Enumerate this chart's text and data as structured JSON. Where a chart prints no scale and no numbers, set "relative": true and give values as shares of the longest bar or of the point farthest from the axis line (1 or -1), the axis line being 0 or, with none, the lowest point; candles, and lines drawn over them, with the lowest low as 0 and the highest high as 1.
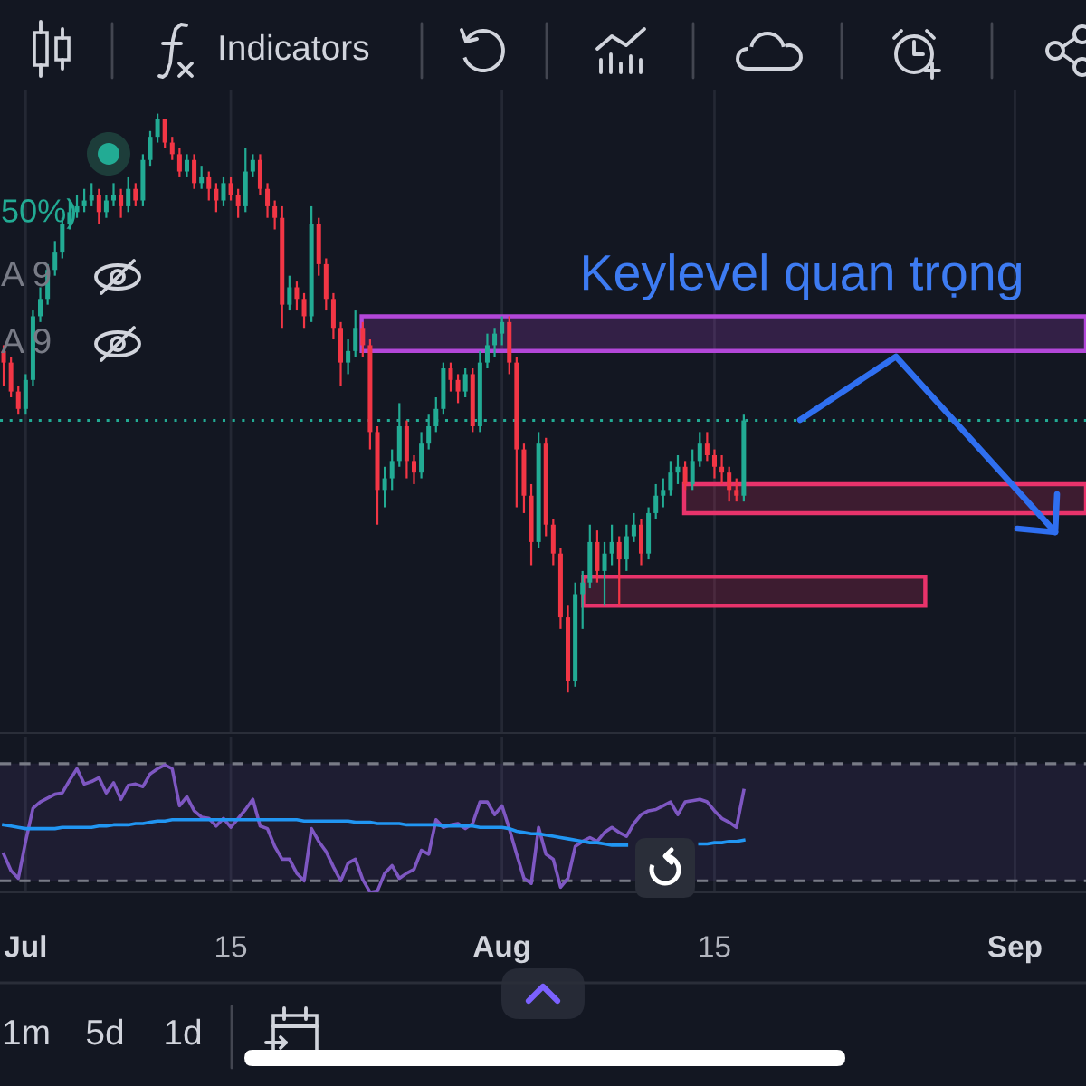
{
  "chart_data": [
    {
      "type": "candlestick",
      "relative": true,
      "categories": [
        null,
        null,
        null,
        null,
        null,
        null,
        null,
        null,
        null,
        null,
        null,
        null,
        null,
        null,
        null,
        null,
        null,
        null,
        null,
        null,
        null,
        null,
        null,
        null,
        null,
        null,
        null,
        null,
        null,
        null,
        null,
        null,
        null,
        null,
        null,
        null,
        null,
        null,
        null,
        null,
        null,
        null,
        null,
        null,
        null,
        null,
        null,
        null,
        null,
        null,
        null,
        null,
        null,
        null,
        null,
        null,
        null,
        null,
        null,
        null,
        null,
        null,
        null,
        null,
        null,
        null,
        null,
        null,
        null,
        null,
        null,
        null,
        null,
        null,
        null,
        null,
        null,
        null,
        null,
        null,
        null,
        null,
        null,
        null,
        null,
        null,
        null,
        null,
        null,
        null,
        null,
        null,
        null,
        null,
        null,
        null,
        null,
        null,
        null,
        null,
        null,
        null,
        null,
        null,
        null,
        null,
        null,
        null,
        null,
        null,
        null,
        null,
        null,
        null,
        null,
        null,
        null,
        null,
        null,
        null,
        null,
        null,
        null,
        null,
        null,
        null,
        null,
        null,
        null,
        null,
        null,
        null,
        null,
        null,
        null,
        null,
        null,
        null,
        null,
        null,
        null,
        null,
        null,
        null,
        null,
        null,
        null,
        null
      ],
      "ohlc": [
        [
          0.59,
          0.6,
          0.53,
          0.57
        ],
        [
          0.57,
          0.58,
          0.51,
          0.52
        ],
        [
          0.52,
          0.53,
          0.48,
          0.49
        ],
        [
          0.49,
          0.55,
          0.48,
          0.54
        ],
        [
          0.54,
          0.66,
          0.53,
          0.65
        ],
        [
          0.65,
          0.7,
          0.64,
          0.68
        ],
        [
          0.68,
          0.74,
          0.67,
          0.73
        ],
        [
          0.73,
          0.78,
          0.72,
          0.76
        ],
        [
          0.76,
          0.82,
          0.75,
          0.81
        ],
        [
          0.81,
          0.85,
          0.8,
          0.83
        ],
        [
          0.83,
          0.86,
          0.82,
          0.84
        ],
        [
          0.84,
          0.87,
          0.83,
          0.85
        ],
        [
          0.85,
          0.88,
          0.84,
          0.86
        ],
        [
          0.86,
          0.87,
          0.81,
          0.83
        ],
        [
          0.83,
          0.86,
          0.82,
          0.85
        ],
        [
          0.85,
          0.88,
          0.84,
          0.86
        ],
        [
          0.86,
          0.87,
          0.82,
          0.84
        ],
        [
          0.84,
          0.89,
          0.83,
          0.87
        ],
        [
          0.87,
          0.88,
          0.84,
          0.85
        ],
        [
          0.85,
          0.93,
          0.84,
          0.92
        ],
        [
          0.92,
          0.97,
          0.91,
          0.96
        ],
        [
          0.96,
          1.0,
          0.95,
          0.99
        ],
        [
          0.99,
          0.99,
          0.94,
          0.95
        ],
        [
          0.95,
          0.96,
          0.92,
          0.93
        ],
        [
          0.93,
          0.94,
          0.89,
          0.9
        ],
        [
          0.9,
          0.93,
          0.89,
          0.92
        ],
        [
          0.92,
          0.93,
          0.87,
          0.88
        ],
        [
          0.88,
          0.91,
          0.87,
          0.89
        ],
        [
          0.89,
          0.9,
          0.85,
          0.87
        ],
        [
          0.87,
          0.88,
          0.83,
          0.85
        ],
        [
          0.85,
          0.89,
          0.84,
          0.88
        ],
        [
          0.88,
          0.89,
          0.85,
          0.86
        ],
        [
          0.86,
          0.87,
          0.82,
          0.84
        ],
        [
          0.84,
          0.94,
          0.83,
          0.9
        ],
        [
          0.9,
          0.93,
          0.89,
          0.92
        ],
        [
          0.92,
          0.93,
          0.86,
          0.87
        ],
        [
          0.87,
          0.88,
          0.82,
          0.84
        ],
        [
          0.84,
          0.85,
          0.8,
          0.82
        ],
        [
          0.82,
          0.84,
          0.63,
          0.67
        ],
        [
          0.67,
          0.72,
          0.66,
          0.7
        ],
        [
          0.7,
          0.71,
          0.66,
          0.68
        ],
        [
          0.68,
          0.69,
          0.63,
          0.65
        ],
        [
          0.65,
          0.84,
          0.64,
          0.81
        ],
        [
          0.81,
          0.82,
          0.72,
          0.74
        ],
        [
          0.74,
          0.75,
          0.66,
          0.68
        ],
        [
          0.68,
          0.69,
          0.61,
          0.63
        ],
        [
          0.63,
          0.64,
          0.53,
          0.57
        ],
        [
          0.57,
          0.61,
          0.55,
          0.59
        ],
        [
          0.59,
          0.66,
          0.58,
          0.63
        ],
        [
          0.63,
          0.64,
          0.58,
          0.6
        ],
        [
          0.6,
          0.61,
          0.42,
          0.45
        ],
        [
          0.45,
          0.46,
          0.29,
          0.35
        ],
        [
          0.35,
          0.39,
          0.32,
          0.37
        ],
        [
          0.37,
          0.42,
          0.35,
          0.4
        ],
        [
          0.4,
          0.5,
          0.39,
          0.46
        ],
        [
          0.46,
          0.47,
          0.37,
          0.4
        ],
        [
          0.4,
          0.41,
          0.36,
          0.38
        ],
        [
          0.38,
          0.45,
          0.37,
          0.43
        ],
        [
          0.43,
          0.48,
          0.42,
          0.46
        ],
        [
          0.46,
          0.51,
          0.45,
          0.49
        ],
        [
          0.49,
          0.57,
          0.48,
          0.56
        ],
        [
          0.56,
          0.57,
          0.52,
          0.54
        ],
        [
          0.54,
          0.55,
          0.5,
          0.52
        ],
        [
          0.52,
          0.56,
          0.51,
          0.55
        ],
        [
          0.55,
          0.56,
          0.45,
          0.46
        ],
        [
          0.46,
          0.59,
          0.45,
          0.57
        ],
        [
          0.57,
          0.62,
          0.56,
          0.6
        ],
        [
          0.6,
          0.63,
          0.58,
          0.62
        ],
        [
          0.62,
          0.65,
          0.6,
          0.64
        ],
        [
          0.64,
          0.65,
          0.55,
          0.57
        ],
        [
          0.57,
          0.58,
          0.32,
          0.42
        ],
        [
          0.42,
          0.43,
          0.31,
          0.34
        ],
        [
          0.34,
          0.36,
          0.22,
          0.26
        ],
        [
          0.26,
          0.45,
          0.25,
          0.43
        ],
        [
          0.43,
          0.44,
          0.27,
          0.29
        ],
        [
          0.29,
          0.3,
          0.22,
          0.24
        ],
        [
          0.24,
          0.25,
          0.11,
          0.13
        ],
        [
          0.13,
          0.15,
          0.0,
          0.02
        ],
        [
          0.02,
          0.19,
          0.01,
          0.17
        ],
        [
          0.17,
          0.21,
          0.11,
          0.19
        ],
        [
          0.19,
          0.29,
          0.18,
          0.26
        ],
        [
          0.26,
          0.28,
          0.19,
          0.21
        ],
        [
          0.21,
          0.26,
          0.15,
          0.24
        ],
        [
          0.24,
          0.29,
          0.22,
          0.26
        ],
        [
          0.26,
          0.27,
          0.15,
          0.23
        ],
        [
          0.23,
          0.29,
          0.21,
          0.27
        ],
        [
          0.27,
          0.31,
          0.26,
          0.29
        ],
        [
          0.29,
          0.3,
          0.22,
          0.24
        ],
        [
          0.24,
          0.32,
          0.23,
          0.31
        ],
        [
          0.31,
          0.36,
          0.3,
          0.34
        ],
        [
          0.34,
          0.37,
          0.32,
          0.35
        ],
        [
          0.35,
          0.4,
          0.34,
          0.38
        ],
        [
          0.38,
          0.41,
          0.36,
          0.39
        ],
        [
          0.39,
          0.4,
          0.35,
          0.36
        ],
        [
          0.36,
          0.42,
          0.35,
          0.4
        ],
        [
          0.4,
          0.45,
          0.39,
          0.43
        ],
        [
          0.43,
          0.45,
          0.4,
          0.41
        ],
        [
          0.41,
          0.42,
          0.37,
          0.39
        ],
        [
          0.39,
          0.41,
          0.36,
          0.38
        ],
        [
          0.38,
          0.39,
          0.33,
          0.35
        ],
        [
          0.35,
          0.37,
          0.33,
          0.34
        ],
        [
          0.34,
          0.48,
          0.33,
          0.47
        ],
        null,
        null,
        null,
        null,
        null,
        null,
        null,
        null,
        null,
        null,
        null,
        null,
        null,
        null,
        null,
        null,
        null,
        null,
        null,
        null,
        null,
        null,
        null,
        null,
        null,
        null,
        null,
        null,
        null,
        null,
        null,
        null,
        null,
        null,
        null,
        null,
        null,
        null,
        null,
        null,
        null,
        null,
        null,
        null,
        null,
        null
      ],
      "colors": [
        "#f23645",
        "#f23645",
        "#f23645",
        "#22ab94",
        "#22ab94",
        "#22ab94",
        "#22ab94",
        "#22ab94",
        "#22ab94",
        "#22ab94",
        "#22ab94",
        "#22ab94",
        "#22ab94",
        "#f23645",
        "#22ab94",
        "#22ab94",
        "#f23645",
        "#22ab94",
        "#f23645",
        "#22ab94",
        "#22ab94",
        "#22ab94",
        "#f23645",
        "#f23645",
        "#f23645",
        "#22ab94",
        "#f23645",
        "#22ab94",
        "#f23645",
        "#f23645",
        "#22ab94",
        "#f23645",
        "#f23645",
        "#22ab94",
        "#22ab94",
        "#f23645",
        "#f23645",
        "#f23645",
        "#f23645",
        "#22ab94",
        "#f23645",
        "#f23645",
        "#22ab94",
        "#f23645",
        "#f23645",
        "#f23645",
        "#f23645",
        "#22ab94",
        "#22ab94",
        "#f23645",
        "#f23645",
        "#f23645",
        "#22ab94",
        "#22ab94",
        "#22ab94",
        "#f23645",
        "#f23645",
        "#22ab94",
        "#22ab94",
        "#22ab94",
        "#22ab94",
        "#f23645",
        "#f23645",
        "#22ab94",
        "#f23645",
        "#22ab94",
        "#22ab94",
        "#22ab94",
        "#22ab94",
        "#f23645",
        "#f23645",
        "#f23645",
        "#f23645",
        "#22ab94",
        "#f23645",
        "#f23645",
        "#f23645",
        "#f23645",
        "#22ab94",
        "#22ab94",
        "#22ab94",
        "#f23645",
        "#22ab94",
        "#22ab94",
        "#f23645",
        "#22ab94",
        "#22ab94",
        "#f23645",
        "#22ab94",
        "#22ab94",
        "#22ab94",
        "#22ab94",
        "#22ab94",
        "#f23645",
        "#22ab94",
        "#22ab94",
        "#f23645",
        "#f23645",
        "#f23645",
        "#f23645",
        "#f23645",
        "#22ab94",
        null,
        null,
        null,
        null,
        null,
        null,
        null,
        null,
        null,
        null,
        null,
        null,
        null,
        null,
        null,
        null,
        null,
        null,
        null,
        null,
        null,
        null,
        null,
        null,
        null,
        null,
        null,
        null,
        null,
        null,
        null,
        null,
        null,
        null,
        null,
        null,
        null,
        null,
        null,
        null,
        null,
        null,
        null,
        null,
        null,
        null
      ],
      "tick_labels": false,
      "grid": "x",
      "ref_lines": [
        {
          "axis": "y",
          "value": 0.47,
          "color": "#22ab94",
          "line_style": "dotted"
        }
      ],
      "bands": [
        {
          "axis": "y",
          "from": 0.59,
          "to": 0.65,
          "color": "#b347d9"
        },
        {
          "axis": "y",
          "from": 0.31,
          "to": 0.36,
          "color": "#e8336b"
        },
        {
          "axis": "y",
          "from": 0.15,
          "to": 0.2,
          "color": "#e8336b"
        }
      ],
      "annotations": [
        "Keylevel quan trọng",
        "50%)",
        "A 9",
        "A 9"
      ]
    },
    {
      "type": "line",
      "relative": true,
      "categories": [
        null,
        null,
        null,
        "Jul",
        null,
        null,
        null,
        null,
        null,
        null,
        null,
        null,
        null,
        null,
        null,
        null,
        null,
        null,
        null,
        null,
        null,
        null,
        null,
        null,
        null,
        null,
        null,
        null,
        null,
        null,
        null,
        "15",
        null,
        null,
        null,
        null,
        null,
        null,
        null,
        null,
        null,
        null,
        null,
        null,
        null,
        null,
        null,
        null,
        null,
        null,
        null,
        null,
        null,
        null,
        null,
        null,
        null,
        null,
        null,
        null,
        null,
        null,
        null,
        null,
        null,
        null,
        null,
        null,
        "Aug",
        null,
        null,
        null,
        null,
        null,
        null,
        null,
        null,
        null,
        null,
        null,
        null,
        null,
        null,
        null,
        null,
        null,
        null,
        null,
        null,
        null,
        null,
        null,
        null,
        null,
        null,
        null,
        null,
        "15",
        null,
        null,
        null,
        null,
        null,
        null,
        null,
        null,
        null,
        null,
        null,
        null,
        null,
        null,
        null,
        null,
        null,
        null,
        null,
        null,
        null,
        null,
        null,
        null,
        null,
        null,
        null,
        null,
        null,
        null,
        null,
        null,
        null,
        null,
        null,
        null,
        null,
        null,
        null,
        null,
        "Sep",
        null,
        null,
        null,
        null,
        null,
        null,
        null,
        null,
        null
      ],
      "series": [
        {
          "color": "#7e57c2",
          "values": [
            0.3,
            0.17,
            0.11,
            0.4,
            0.66,
            0.71,
            0.74,
            0.77,
            0.78,
            0.88,
            0.97,
            0.85,
            0.87,
            0.9,
            0.78,
            0.86,
            0.73,
            0.84,
            0.85,
            0.83,
            0.93,
            0.97,
            1.0,
            0.97,
            0.68,
            0.75,
            0.64,
            0.59,
            0.58,
            0.52,
            0.58,
            0.51,
            0.58,
            0.65,
            0.73,
            0.52,
            0.5,
            0.36,
            0.26,
            0.26,
            0.15,
            0.09,
            0.5,
            0.4,
            0.32,
            0.2,
            0.09,
            0.23,
            0.26,
            0.1,
            0.0,
            0.01,
            0.15,
            0.21,
            0.11,
            0.15,
            0.18,
            0.33,
            0.3,
            0.57,
            0.51,
            0.53,
            0.54,
            0.5,
            0.54,
            0.71,
            0.71,
            0.61,
            0.68,
            0.5,
            0.3,
            0.11,
            0.07,
            0.51,
            0.3,
            0.26,
            0.04,
            0.11,
            0.36,
            0.4,
            0.43,
            0.4,
            0.47,
            0.51,
            0.47,
            0.44,
            0.54,
            0.61,
            0.64,
            0.65,
            0.68,
            0.71,
            0.61,
            0.71,
            0.72,
            0.73,
            0.71,
            0.64,
            0.58,
            0.55,
            0.51,
            0.8,
            null,
            null,
            null,
            null,
            null,
            null,
            null,
            null,
            null,
            null,
            null,
            null,
            null,
            null,
            null,
            null,
            null,
            null,
            null,
            null,
            null,
            null,
            null,
            null,
            null,
            null,
            null,
            null,
            null,
            null,
            null,
            null,
            null,
            null,
            null,
            null,
            null,
            null,
            null,
            null,
            null,
            null,
            null,
            null,
            null,
            null
          ]
        },
        {
          "color": "#2196f3",
          "values": [
            0.53,
            0.52,
            0.51,
            0.5,
            0.5,
            0.5,
            0.5,
            0.5,
            0.51,
            0.51,
            0.51,
            0.51,
            0.51,
            0.52,
            0.52,
            0.53,
            0.53,
            0.53,
            0.54,
            0.54,
            0.55,
            0.56,
            0.56,
            0.57,
            0.57,
            0.57,
            0.57,
            0.57,
            0.57,
            0.57,
            0.57,
            0.57,
            0.57,
            0.57,
            0.57,
            0.57,
            0.57,
            0.57,
            0.57,
            0.57,
            0.57,
            0.56,
            0.56,
            0.56,
            0.56,
            0.56,
            0.56,
            0.56,
            0.55,
            0.55,
            0.55,
            0.54,
            0.54,
            0.54,
            0.54,
            0.53,
            0.53,
            0.53,
            0.53,
            0.53,
            0.52,
            0.52,
            0.52,
            0.52,
            0.52,
            0.51,
            0.51,
            0.51,
            0.51,
            0.5,
            0.48,
            0.47,
            0.46,
            0.46,
            0.45,
            0.44,
            0.43,
            0.42,
            0.41,
            0.4,
            0.39,
            0.39,
            0.38,
            0.37,
            0.37,
            0.37,
            null,
            null,
            null,
            null,
            null,
            null,
            null,
            null,
            null,
            0.38,
            0.38,
            0.39,
            0.39,
            0.4,
            0.4,
            0.41,
            null,
            null,
            null,
            null,
            null,
            null,
            null,
            null,
            null,
            null,
            null,
            null,
            null,
            null,
            null,
            null,
            null,
            null,
            null,
            null,
            null,
            null,
            null,
            null,
            null,
            null,
            null,
            null,
            null,
            null,
            null,
            null,
            null,
            null,
            null,
            null,
            null,
            null,
            null,
            null,
            null,
            null,
            null,
            null,
            null,
            null
          ]
        }
      ],
      "tick_labels": "x",
      "grid": "x",
      "ref_lines": [
        {
          "axis": "y",
          "value": 1.01,
          "color": "#787b86",
          "line_style": "dashed"
        },
        {
          "axis": "y",
          "value": 0.09,
          "color": "#787b86",
          "line_style": "dashed"
        }
      ],
      "bands": [
        {
          "axis": "y",
          "from": 0.09,
          "to": 1.01,
          "color": "#7e57c2"
        }
      ]
    },
    {
      "type": "other",
      "annotations": [
        "Indicators",
        "1m",
        "5d",
        "1d"
      ]
    }
  ]
}
